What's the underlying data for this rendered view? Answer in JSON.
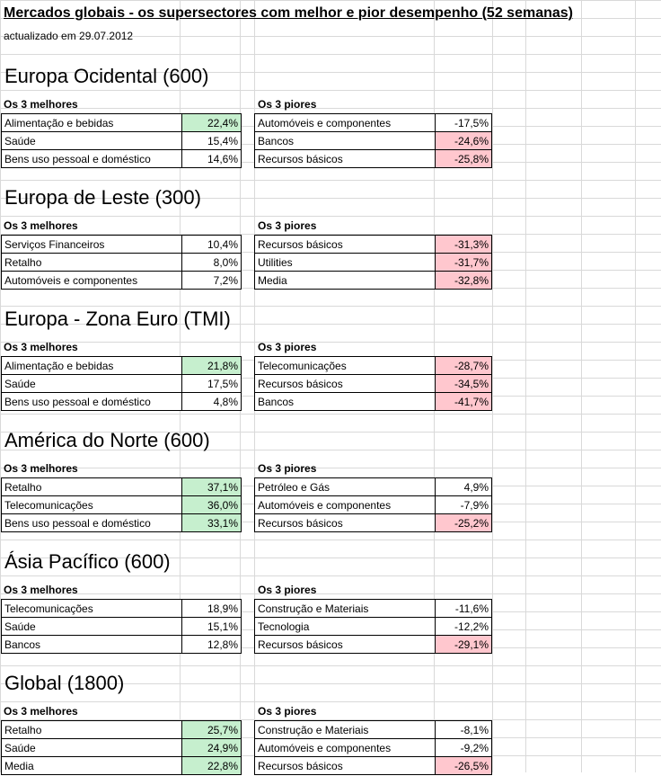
{
  "title": "Mercados globais - os supersectores com melhor e pior desempenho (52 semanas)",
  "subtitle": "actualizado em 29.07.2012",
  "colors": {
    "green_highlight": "#c6efce",
    "red_highlight": "#ffc7ce",
    "gridline": "#d9d9d9"
  },
  "sections": [
    {
      "heading": "Europa Ocidental (600)",
      "best_label": "Os 3 melhores",
      "worst_label": "Os 3 piores",
      "best": [
        {
          "name": "Alimentação e bebidas",
          "value": "22,4%",
          "highlight": "green"
        },
        {
          "name": "Saúde",
          "value": "15,4%",
          "highlight": ""
        },
        {
          "name": "Bens uso pessoal e doméstico",
          "value": "14,6%",
          "highlight": ""
        }
      ],
      "worst": [
        {
          "name": "Automóveis e componentes",
          "value": "-17,5%",
          "highlight": ""
        },
        {
          "name": "Bancos",
          "value": "-24,6%",
          "highlight": "red"
        },
        {
          "name": "Recursos básicos",
          "value": "-25,8%",
          "highlight": "red"
        }
      ]
    },
    {
      "heading": "Europa de Leste (300)",
      "best_label": "Os 3 melhores",
      "worst_label": "Os 3 piores",
      "best": [
        {
          "name": "Serviços Financeiros",
          "value": "10,4%",
          "highlight": ""
        },
        {
          "name": "Retalho",
          "value": "8,0%",
          "highlight": ""
        },
        {
          "name": "Automóveis e componentes",
          "value": "7,2%",
          "highlight": ""
        }
      ],
      "worst": [
        {
          "name": "Recursos básicos",
          "value": "-31,3%",
          "highlight": "red"
        },
        {
          "name": "Utilities",
          "value": "-31,7%",
          "highlight": "red"
        },
        {
          "name": "Media",
          "value": "-32,8%",
          "highlight": "red"
        }
      ]
    },
    {
      "heading": "Europa - Zona Euro (TMI)",
      "best_label": "Os 3 melhores",
      "worst_label": "Os 3 piores",
      "best": [
        {
          "name": "Alimentação e bebidas",
          "value": "21,8%",
          "highlight": "green"
        },
        {
          "name": "Saúde",
          "value": "17,5%",
          "highlight": ""
        },
        {
          "name": "Bens uso pessoal e doméstico",
          "value": "4,8%",
          "highlight": ""
        }
      ],
      "worst": [
        {
          "name": "Telecomunicações",
          "value": "-28,7%",
          "highlight": "red"
        },
        {
          "name": "Recursos básicos",
          "value": "-34,5%",
          "highlight": "red"
        },
        {
          "name": "Bancos",
          "value": "-41,7%",
          "highlight": "red"
        }
      ]
    },
    {
      "heading": "América do Norte (600)",
      "best_label": "Os 3 melhores",
      "worst_label": "Os 3 piores",
      "best": [
        {
          "name": "Retalho",
          "value": "37,1%",
          "highlight": "green"
        },
        {
          "name": "Telecomunicações",
          "value": "36,0%",
          "highlight": "green"
        },
        {
          "name": "Bens uso pessoal e doméstico",
          "value": "33,1%",
          "highlight": "green"
        }
      ],
      "worst": [
        {
          "name": "Petróleo e Gás",
          "value": "4,9%",
          "highlight": ""
        },
        {
          "name": "Automóveis e componentes",
          "value": "-7,9%",
          "highlight": ""
        },
        {
          "name": "Recursos básicos",
          "value": "-25,2%",
          "highlight": "red"
        }
      ]
    },
    {
      "heading": "Ásia Pacífico (600)",
      "best_label": "Os 3 melhores",
      "worst_label": "Os 3 piores",
      "best": [
        {
          "name": "Telecomunicações",
          "value": "18,9%",
          "highlight": ""
        },
        {
          "name": "Saúde",
          "value": "15,1%",
          "highlight": ""
        },
        {
          "name": "Bancos",
          "value": "12,8%",
          "highlight": ""
        }
      ],
      "worst": [
        {
          "name": "Construção e Materiais",
          "value": "-11,6%",
          "highlight": ""
        },
        {
          "name": "Tecnologia",
          "value": "-12,2%",
          "highlight": ""
        },
        {
          "name": "Recursos básicos",
          "value": "-29,1%",
          "highlight": "red"
        }
      ]
    },
    {
      "heading": "Global (1800)",
      "best_label": "Os 3 melhores",
      "worst_label": "Os 3 piores",
      "best": [
        {
          "name": "Retalho",
          "value": "25,7%",
          "highlight": "green"
        },
        {
          "name": "Saúde",
          "value": "24,9%",
          "highlight": "green"
        },
        {
          "name": "Media",
          "value": "22,8%",
          "highlight": "green"
        }
      ],
      "worst": [
        {
          "name": "Construção e Materiais",
          "value": "-8,1%",
          "highlight": ""
        },
        {
          "name": "Automóveis e componentes",
          "value": "-9,2%",
          "highlight": ""
        },
        {
          "name": "Recursos básicos",
          "value": "-26,5%",
          "highlight": "red"
        }
      ]
    }
  ]
}
